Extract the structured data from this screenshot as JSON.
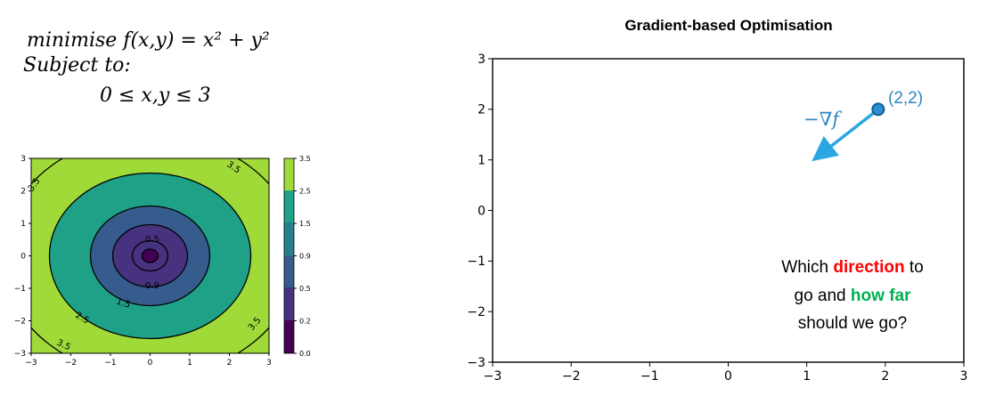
{
  "problem": {
    "objective": "minimise f(x,y) = x² + y²",
    "subject_to": "Subject to:",
    "constraint": "0 ≤ x,y ≤ 3"
  },
  "contour_plot": {
    "x_ticks": [
      "−3",
      "−2",
      "−1",
      "0",
      "1",
      "2",
      "3"
    ],
    "y_ticks": [
      "3",
      "2",
      "1",
      "0",
      "−1",
      "−2",
      "−3"
    ],
    "xlim": [
      -3,
      3
    ],
    "ylim": [
      -3,
      3
    ],
    "levels": [
      0.0,
      0.2,
      0.5,
      0.9,
      1.5,
      2.5,
      3.5
    ],
    "level_labels": [
      "0.5",
      "0.9",
      "1.5",
      "2.5",
      "3.5",
      "3.5",
      "3.5",
      "3.5"
    ],
    "colorbar_ticks": [
      "3.5",
      "2.5",
      "1.5",
      "0.9",
      "0.5",
      "0.2",
      "0.0"
    ],
    "colors": {
      "band_0": "#440154",
      "band_1": "#46327e",
      "band_2": "#365c8d",
      "band_3": "#277f8e",
      "band_4": "#1fa187",
      "band_5": "#4ac16d",
      "band_6": "#a0da39"
    }
  },
  "gradient_plot": {
    "title": "Gradient-based Optimisation",
    "xlim": [
      -3,
      3
    ],
    "ylim": [
      -3,
      3
    ],
    "x_ticks": [
      "−3",
      "−2",
      "−1",
      "0",
      "1",
      "2",
      "3"
    ],
    "y_ticks": [
      "3",
      "2",
      "1",
      "0",
      "−1",
      "−2",
      "−3"
    ],
    "point": {
      "x": 2,
      "y": 2,
      "label": "(2,2)"
    },
    "arrow_label": "−∇f",
    "question": {
      "line1_pre": "Which ",
      "line1_hl": "direction",
      "line1_post": " to",
      "line2_pre": "go and ",
      "line2_hl": "how far",
      "line3": "should we go?"
    },
    "colors": {
      "point": "#2e8fd0",
      "arrow": "#2aa7e0",
      "label": "#2e86c1",
      "direction": "#ff0000",
      "how_far": "#00b050"
    }
  }
}
